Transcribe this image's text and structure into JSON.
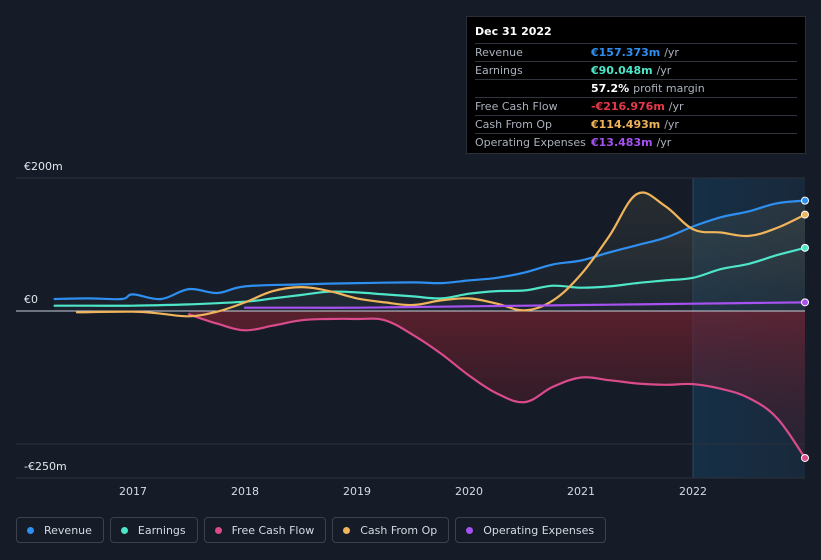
{
  "tooltip": {
    "date": "Dec 31 2022",
    "rows": [
      {
        "label": "Revenue",
        "value": "€157.373m",
        "unit": "/yr",
        "color": "#2e8ff0"
      },
      {
        "label": "Earnings",
        "value": "€90.048m",
        "unit": "/yr",
        "color": "#4ee6c8"
      },
      {
        "label": "",
        "value": "57.2%",
        "unit": "profit margin",
        "color": "#ffffff"
      },
      {
        "label": "Free Cash Flow",
        "value": "-€216.976m",
        "unit": "/yr",
        "color": "#e8394a"
      },
      {
        "label": "Cash From Op",
        "value": "€114.493m",
        "unit": "/yr",
        "color": "#f0b45a"
      },
      {
        "label": "Operating Expenses",
        "value": "€13.483m",
        "unit": "/yr",
        "color": "#a552f0"
      }
    ]
  },
  "axis": {
    "y_top": "€200m",
    "y_zero": "€0",
    "y_bottom": "-€250m"
  },
  "legend": [
    {
      "label": "Revenue",
      "color": "#2e8ff0"
    },
    {
      "label": "Earnings",
      "color": "#4ee6c8"
    },
    {
      "label": "Free Cash Flow",
      "color": "#d94b8b"
    },
    {
      "label": "Cash From Op",
      "color": "#f0b45a"
    },
    {
      "label": "Operating Expenses",
      "color": "#a552f0"
    }
  ],
  "chart_data": {
    "type": "line",
    "ylim": [
      -250,
      200
    ],
    "xlim": [
      2016.0,
      2023.0
    ],
    "x_ticks": [
      "2017",
      "2018",
      "2019",
      "2020",
      "2021",
      "2022"
    ],
    "forecast_start": 2022.0,
    "series": [
      {
        "name": "Revenue",
        "color": "#2e8ff0",
        "points": [
          [
            2016.3,
            18
          ],
          [
            2016.6,
            19
          ],
          [
            2016.9,
            18
          ],
          [
            2017.0,
            25
          ],
          [
            2017.25,
            18
          ],
          [
            2017.5,
            33
          ],
          [
            2017.75,
            27
          ],
          [
            2018.0,
            37
          ],
          [
            2018.5,
            40
          ],
          [
            2019.0,
            42
          ],
          [
            2019.5,
            43
          ],
          [
            2019.75,
            42
          ],
          [
            2020.0,
            46
          ],
          [
            2020.25,
            50
          ],
          [
            2020.5,
            58
          ],
          [
            2020.75,
            70
          ],
          [
            2021.0,
            76
          ],
          [
            2021.25,
            88
          ],
          [
            2021.5,
            99
          ],
          [
            2021.75,
            110
          ],
          [
            2022.0,
            127
          ],
          [
            2022.25,
            141
          ],
          [
            2022.5,
            150
          ],
          [
            2022.75,
            162
          ],
          [
            2023.0,
            166
          ]
        ]
      },
      {
        "name": "Earnings",
        "color": "#4ee6c8",
        "points": [
          [
            2016.3,
            8
          ],
          [
            2016.6,
            8
          ],
          [
            2017.0,
            8
          ],
          [
            2017.5,
            10
          ],
          [
            2018.0,
            14
          ],
          [
            2018.25,
            19
          ],
          [
            2018.5,
            24
          ],
          [
            2018.75,
            29
          ],
          [
            2019.0,
            28
          ],
          [
            2019.25,
            25
          ],
          [
            2019.5,
            22
          ],
          [
            2019.75,
            19
          ],
          [
            2020.0,
            26
          ],
          [
            2020.25,
            30
          ],
          [
            2020.5,
            31
          ],
          [
            2020.75,
            38
          ],
          [
            2021.0,
            35
          ],
          [
            2021.25,
            37
          ],
          [
            2021.5,
            42
          ],
          [
            2021.75,
            46
          ],
          [
            2022.0,
            50
          ],
          [
            2022.25,
            63
          ],
          [
            2022.5,
            71
          ],
          [
            2022.75,
            84
          ],
          [
            2023.0,
            95
          ]
        ]
      },
      {
        "name": "Free Cash Flow",
        "color": "#d94b8b",
        "points": [
          [
            2017.5,
            -5
          ],
          [
            2017.75,
            -19
          ],
          [
            2018.0,
            -29
          ],
          [
            2018.25,
            -22
          ],
          [
            2018.5,
            -14
          ],
          [
            2018.75,
            -12
          ],
          [
            2019.0,
            -12
          ],
          [
            2019.25,
            -14
          ],
          [
            2019.5,
            -36
          ],
          [
            2019.75,
            -64
          ],
          [
            2020.0,
            -97
          ],
          [
            2020.25,
            -124
          ],
          [
            2020.5,
            -137
          ],
          [
            2020.75,
            -114
          ],
          [
            2021.0,
            -100
          ],
          [
            2021.25,
            -104
          ],
          [
            2021.5,
            -109
          ],
          [
            2021.75,
            -111
          ],
          [
            2022.0,
            -110
          ],
          [
            2022.25,
            -117
          ],
          [
            2022.5,
            -131
          ],
          [
            2022.75,
            -161
          ],
          [
            2023.0,
            -221
          ]
        ]
      },
      {
        "name": "Cash From Op",
        "color": "#f0b45a",
        "points": [
          [
            2016.5,
            -2
          ],
          [
            2017.0,
            -1
          ],
          [
            2017.25,
            -4
          ],
          [
            2017.5,
            -8
          ],
          [
            2017.75,
            -1
          ],
          [
            2018.0,
            13
          ],
          [
            2018.25,
            30
          ],
          [
            2018.5,
            36
          ],
          [
            2018.75,
            30
          ],
          [
            2019.0,
            19
          ],
          [
            2019.25,
            13
          ],
          [
            2019.5,
            9
          ],
          [
            2019.75,
            16
          ],
          [
            2020.0,
            19
          ],
          [
            2020.25,
            11
          ],
          [
            2020.5,
            1
          ],
          [
            2020.75,
            16
          ],
          [
            2021.0,
            55
          ],
          [
            2021.25,
            112
          ],
          [
            2021.5,
            176
          ],
          [
            2021.75,
            158
          ],
          [
            2022.0,
            123
          ],
          [
            2022.25,
            118
          ],
          [
            2022.5,
            113
          ],
          [
            2022.75,
            125
          ],
          [
            2023.0,
            145
          ]
        ]
      },
      {
        "name": "Operating Expenses",
        "color": "#a552f0",
        "points": [
          [
            2018.0,
            5
          ],
          [
            2018.5,
            5
          ],
          [
            2019.0,
            5
          ],
          [
            2019.5,
            6
          ],
          [
            2020.0,
            7
          ],
          [
            2020.5,
            8
          ],
          [
            2021.0,
            9
          ],
          [
            2021.5,
            10
          ],
          [
            2022.0,
            11
          ],
          [
            2022.5,
            12
          ],
          [
            2023.0,
            13
          ]
        ]
      }
    ]
  }
}
